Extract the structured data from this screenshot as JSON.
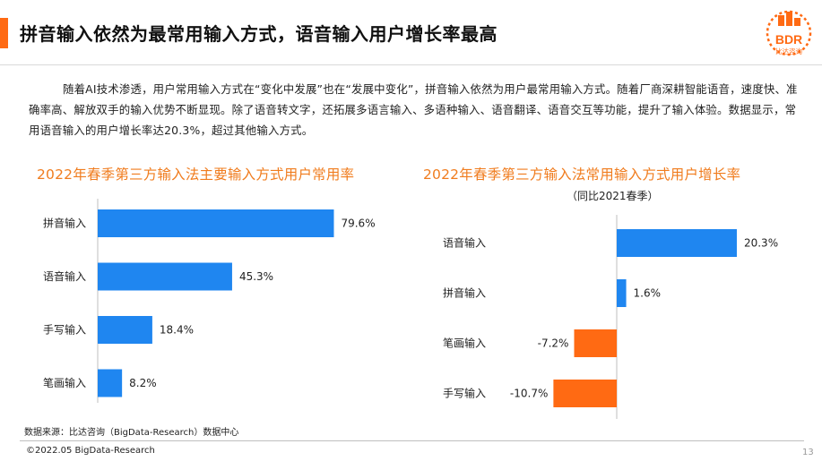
{
  "header": {
    "title": "拼音输入依然为最常用输入方式，语音输入用户增长率最高",
    "accent_color": "#ff6a13"
  },
  "logo": {
    "brand": "BDR",
    "sub": "比达咨询",
    "color": "#ff6a13"
  },
  "intro": "随着AI技术渗透，用户常用输入方式在“变化中发展”也在“发展中变化”，拼音输入依然为用户最常用输入方式。随着厂商深耕智能语音，速度快、准确率高、解放双手的输入优势不断显现。除了语音转文字，还拓展多语言输入、多语种输入、语音翻译、语音交互等功能，提升了输入体验。数据显示，常用语音输入的用户增长率达20.3%，超过其他输入方式。",
  "chart_data": [
    {
      "type": "bar",
      "orientation": "horizontal",
      "title": "2022年春季第三方输入法主要输入方式用户常用率",
      "categories": [
        "拼音输入",
        "语音输入",
        "手写输入",
        "笔画输入"
      ],
      "values": [
        79.6,
        45.3,
        18.4,
        8.2
      ],
      "labels": [
        "79.6%",
        "45.3%",
        "18.4%",
        "8.2%"
      ],
      "xlim": [
        0,
        100
      ],
      "color": "#1f86f0",
      "title_color": "#f07c1e",
      "grid": false
    },
    {
      "type": "bar",
      "orientation": "horizontal",
      "title": "2022年春季第三方输入法常用输入方式用户增长率",
      "subtitle": "（同比2021春季）",
      "categories": [
        "语音输入",
        "拼音输入",
        "笔画输入",
        "手写输入"
      ],
      "values": [
        20.3,
        1.6,
        -7.2,
        -10.7
      ],
      "labels": [
        "20.3%",
        "1.6%",
        "-7.2%",
        "-10.7%"
      ],
      "xlim": [
        -12,
        24
      ],
      "positive_color": "#1f86f0",
      "negative_color": "#ff6a13",
      "title_color": "#f07c1e",
      "grid": false
    }
  ],
  "footer": {
    "source": "数据来源：比达咨询（BigData-Research）数据中心",
    "copyright": "©2022.05 BigData-Research",
    "page_number": "13"
  }
}
